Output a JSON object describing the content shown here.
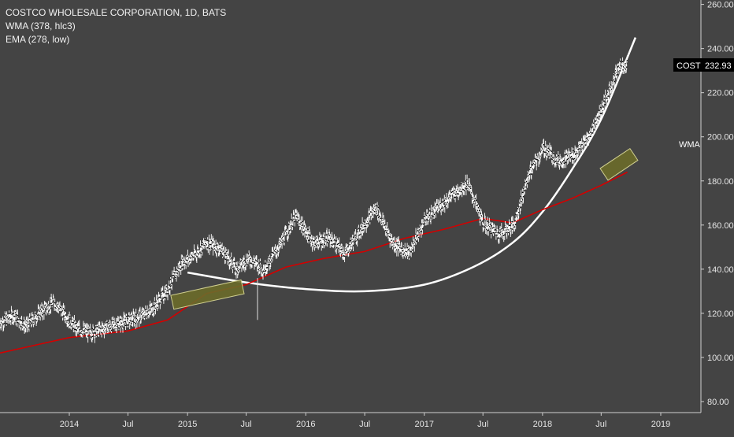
{
  "legend": {
    "title": "COSTCO WHOLESALE CORPORATION, 1D, BATS",
    "wma": "WMA (378, hlc3)",
    "ema": "EMA (278, low)"
  },
  "price_badge": {
    "symbol": "COST",
    "value": "232.93"
  },
  "side_label": "WMA",
  "colors": {
    "background": "#444444",
    "price": "#000000",
    "price_wick": "#ffffff",
    "ema": "#d40000",
    "curve": "#ffffff",
    "box_fill": "#6b6b2a",
    "box_stroke": "#d0cf90",
    "axis_text": "#e6e6e6",
    "badge_bg": "#000000"
  },
  "chart_data": {
    "type": "line",
    "title": "COSTCO WHOLESALE CORPORATION, 1D, BATS",
    "x_axis": {
      "type": "date",
      "range": [
        "2013-06-01",
        "2019-05-05"
      ],
      "tick_labels": [
        "2014",
        "Jul",
        "2015",
        "Jul",
        "2016",
        "Jul",
        "2017",
        "Jul",
        "2018",
        "Jul",
        "2019"
      ]
    },
    "y_axis": {
      "position": "right",
      "range": [
        75,
        262
      ],
      "ticks": [
        80,
        100,
        120,
        140,
        160,
        180,
        200,
        220,
        240,
        260
      ]
    },
    "grid": false,
    "series": [
      {
        "name": "COST",
        "style": "ohlc",
        "points": [
          [
            "2013-06-01",
            116
          ],
          [
            "2013-07-15",
            119
          ],
          [
            "2013-08-20",
            114
          ],
          [
            "2013-10-01",
            120
          ],
          [
            "2013-11-15",
            125
          ],
          [
            "2013-12-20",
            119
          ],
          [
            "2014-01-25",
            113
          ],
          [
            "2014-03-10",
            111
          ],
          [
            "2014-05-01",
            114
          ],
          [
            "2014-06-15",
            116
          ],
          [
            "2014-08-01",
            118
          ],
          [
            "2014-09-15",
            122
          ],
          [
            "2014-11-01",
            131
          ],
          [
            "2014-12-15",
            143
          ],
          [
            "2015-01-20",
            146
          ],
          [
            "2015-03-01",
            152
          ],
          [
            "2015-04-15",
            149
          ],
          [
            "2015-06-01",
            140
          ],
          [
            "2015-07-10",
            145
          ],
          [
            "2015-08-25",
            140
          ],
          [
            "2015-10-10",
            150
          ],
          [
            "2015-12-01",
            164
          ],
          [
            "2016-01-25",
            152
          ],
          [
            "2016-03-15",
            154
          ],
          [
            "2016-05-01",
            147
          ],
          [
            "2016-06-20",
            158
          ],
          [
            "2016-08-05",
            168
          ],
          [
            "2016-09-25",
            152
          ],
          [
            "2016-11-15",
            147
          ],
          [
            "2017-01-01",
            162
          ],
          [
            "2017-02-15",
            168
          ],
          [
            "2017-04-01",
            174
          ],
          [
            "2017-05-15",
            179
          ],
          [
            "2017-07-01",
            161
          ],
          [
            "2017-08-20",
            156
          ],
          [
            "2017-10-05",
            160
          ],
          [
            "2017-11-20",
            183
          ],
          [
            "2018-01-05",
            195
          ],
          [
            "2018-02-20",
            189
          ],
          [
            "2018-04-10",
            192
          ],
          [
            "2018-05-25",
            200
          ],
          [
            "2018-07-10",
            215
          ],
          [
            "2018-08-25",
            232
          ],
          [
            "2018-09-20",
            233
          ]
        ]
      },
      {
        "name": "EMA (278, low)",
        "style": "line",
        "points": [
          [
            "2013-06-01",
            102
          ],
          [
            "2013-10-01",
            106
          ],
          [
            "2014-01-01",
            109
          ],
          [
            "2014-07-01",
            112
          ],
          [
            "2014-11-01",
            117
          ],
          [
            "2015-03-01",
            129
          ],
          [
            "2015-07-01",
            133
          ],
          [
            "2015-11-01",
            141
          ],
          [
            "2016-03-01",
            145
          ],
          [
            "2016-07-01",
            148
          ],
          [
            "2016-11-01",
            154
          ],
          [
            "2017-03-01",
            158
          ],
          [
            "2017-07-01",
            163
          ],
          [
            "2017-10-01",
            161
          ],
          [
            "2018-01-01",
            167
          ],
          [
            "2018-04-01",
            172
          ],
          [
            "2018-07-01",
            178
          ],
          [
            "2018-09-20",
            184
          ]
        ]
      },
      {
        "style": "curve",
        "points": [
          [
            "2015-01-01",
            138.5
          ],
          [
            "2015-07-01",
            134
          ],
          [
            "2016-01-01",
            131
          ],
          [
            "2016-07-01",
            130
          ],
          [
            "2017-01-01",
            133
          ],
          [
            "2017-06-01",
            141
          ],
          [
            "2017-10-01",
            152
          ],
          [
            "2018-01-01",
            166
          ],
          [
            "2018-04-01",
            185
          ],
          [
            "2018-07-01",
            208
          ],
          [
            "2018-10-15",
            245
          ]
        ]
      }
    ],
    "annotations": [
      {
        "type": "rectangle",
        "from": [
          "2014-11-15",
          125
        ],
        "to": [
          "2015-06-20",
          132
        ]
      },
      {
        "type": "rectangle",
        "from": [
          "2018-07-10",
          183
        ],
        "to": [
          "2018-10-10",
          192
        ]
      },
      {
        "type": "vertical-line",
        "x": "2015-08-05",
        "from": 117,
        "to": 136
      }
    ]
  }
}
